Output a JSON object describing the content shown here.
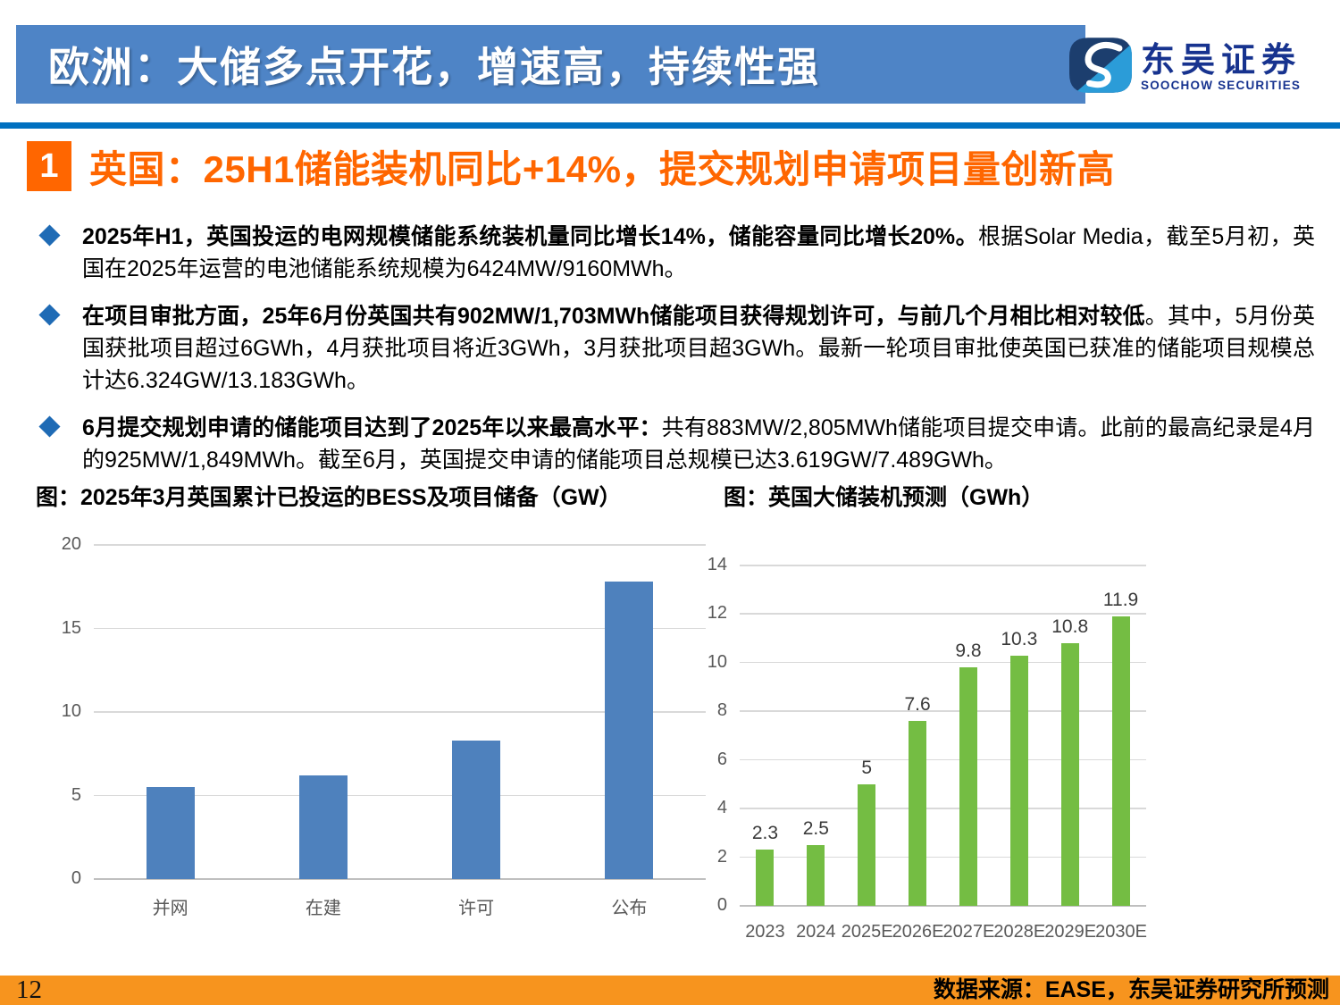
{
  "header": {
    "title": "欧洲：大储多点开花，增速高，持续性强"
  },
  "logo": {
    "name_cn": "东吴证券",
    "name_en": "SOOCHOW SECURITIES"
  },
  "section": {
    "number": "1",
    "title": "英国：25H1储能装机同比+14%，提交规划申请项目量创新高"
  },
  "bullets": [
    {
      "bold": "2025年H1，英国投运的电网规模储能系统装机量同比增长14%，储能容量同比增长20%。",
      "rest": "根据Solar Media，截至5月初，英国在2025年运营的电池储能系统规模为6424MW/9160MWh。"
    },
    {
      "bold": "在项目审批方面，25年6月份英国共有902MW/1,703MWh储能项目获得规划许可，与前几个月相比相对较低",
      "rest": "。其中，5月份英国获批项目超过6GWh，4月获批项目将近3GWh，3月获批项目超3GWh。最新一轮项目审批使英国已获准的储能项目规模总计达6.324GW/13.183GWh。"
    },
    {
      "bold": "6月提交规划申请的储能项目达到了2025年以来最高水平：",
      "rest": "共有883MW/2,805MWh储能项目提交申请。此前的最高纪录是4月的925MW/1,849MWh。截至6月，英国提交申请的储能项目总规模已达3.619GW/7.489GWh。"
    }
  ],
  "chart_data": [
    {
      "type": "bar",
      "title": "图：2025年3月英国累计已投运的BESS及项目储备（GW）",
      "categories": [
        "并网",
        "在建",
        "许可",
        "公布"
      ],
      "values": [
        5.5,
        6.2,
        8.3,
        17.8
      ],
      "ylim": [
        0,
        20
      ],
      "ytick_step": 5,
      "yticks": [
        0,
        5,
        10,
        15,
        20
      ],
      "grid": true,
      "legend": "none",
      "show_value_labels": false,
      "color": "#4E81BD",
      "xlabel": "",
      "ylabel": ""
    },
    {
      "type": "bar",
      "title": "图：英国大储装机预测（GWh）",
      "categories": [
        "2023",
        "2024",
        "2025E",
        "2026E",
        "2027E",
        "2028E",
        "2029E",
        "2030E"
      ],
      "values": [
        2.3,
        2.5,
        5,
        7.6,
        9.8,
        10.3,
        10.8,
        11.9
      ],
      "ylim": [
        0,
        14
      ],
      "ytick_step": 2,
      "yticks": [
        0,
        2,
        4,
        6,
        8,
        10,
        12,
        14
      ],
      "grid": true,
      "legend": "none",
      "show_value_labels": true,
      "color": "#74BD43",
      "xlabel": "",
      "ylabel": ""
    }
  ],
  "footer": {
    "page_number": "12",
    "source": "数据来源：EASE，东吴证券研究所预测"
  },
  "colors": {
    "header_blue": "#4E84C6",
    "divider_blue": "#0070C0",
    "accent_orange": "#FF6600",
    "footer_orange": "#F7941E",
    "bullet_blue": "#1F6BB5",
    "bar_blue": "#4E81BD",
    "bar_green": "#74BD43",
    "logo_navy": "#17338F",
    "logo_light_blue": "#2B9CD8",
    "gridline_gray": "#D9D9D9",
    "axis_text_gray": "#595959"
  }
}
